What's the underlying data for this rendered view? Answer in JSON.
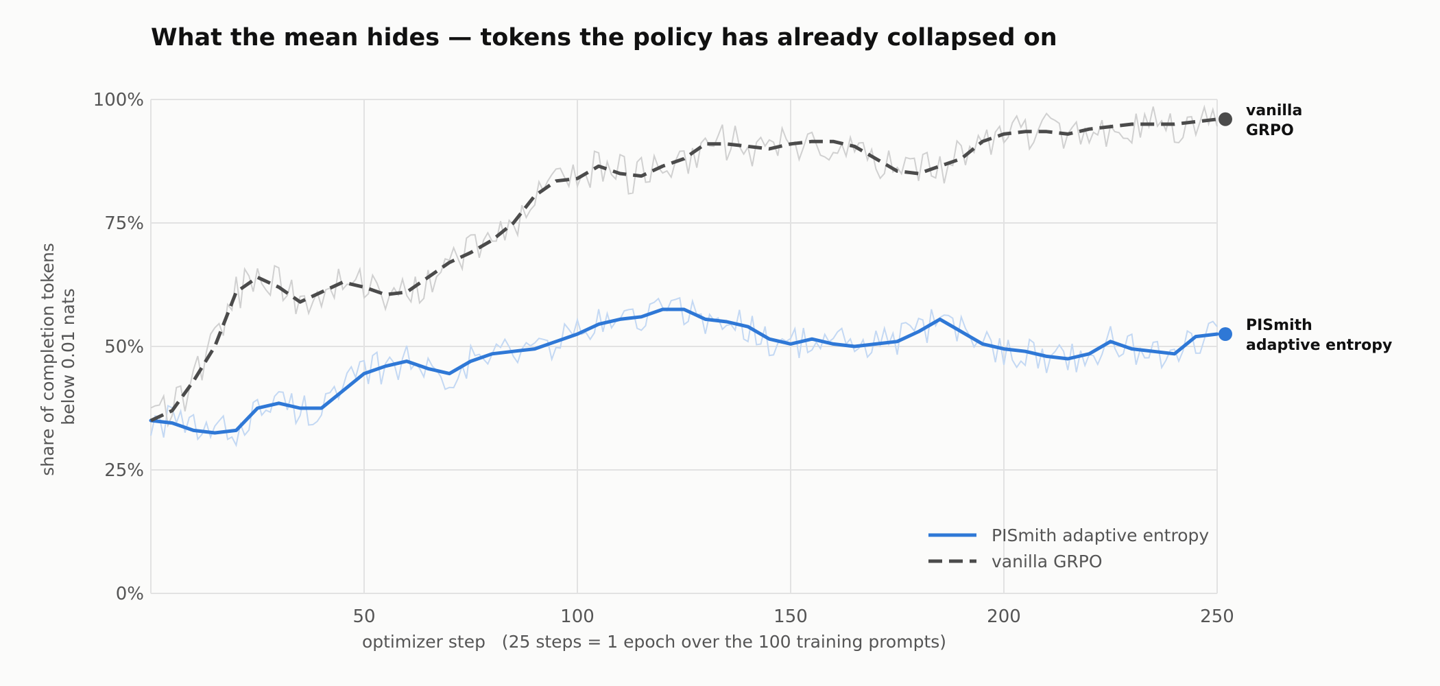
{
  "chart_data": {
    "type": "line",
    "title": "What the mean hides — tokens the policy has already collapsed on",
    "xlabel": "optimizer step   (25 steps = 1 epoch over the 100 training prompts)",
    "ylabel": [
      "share of completion tokens",
      "below 0.01 nats"
    ],
    "xlim": [
      0,
      250
    ],
    "ylim": [
      0,
      100
    ],
    "x_ticks": [
      50,
      100,
      150,
      200,
      250
    ],
    "y_ticks": [
      0,
      25,
      50,
      75,
      100
    ],
    "y_tick_labels": [
      "0%",
      "25%",
      "50%",
      "75%",
      "100%"
    ],
    "grid": true,
    "legend_position": "bottom-right",
    "series": [
      {
        "name": "PISmith adaptive entropy",
        "end_label": [
          "PISmith",
          "adaptive entropy"
        ],
        "color": "#2f78d6",
        "raw_color": "#c3d8f3",
        "style": "solid",
        "x": [
          0,
          5,
          10,
          15,
          20,
          25,
          30,
          35,
          40,
          45,
          50,
          55,
          60,
          65,
          70,
          75,
          80,
          85,
          90,
          95,
          100,
          105,
          110,
          115,
          120,
          125,
          130,
          135,
          140,
          145,
          150,
          155,
          160,
          165,
          170,
          175,
          180,
          185,
          190,
          195,
          200,
          205,
          210,
          215,
          220,
          225,
          230,
          235,
          240,
          245,
          250
        ],
        "values": [
          35,
          34.5,
          33,
          32.5,
          33,
          37.5,
          38.5,
          37.5,
          37.5,
          41,
          44.5,
          46,
          47,
          45.5,
          44.5,
          47,
          48.5,
          49,
          49.5,
          51,
          52.5,
          54.5,
          55.5,
          56,
          57.5,
          57.5,
          55.5,
          55,
          54,
          51.5,
          50.5,
          51.5,
          50.5,
          50,
          50.5,
          51,
          53,
          55.5,
          53,
          50.5,
          49.5,
          49,
          48,
          47.5,
          48.5,
          51,
          49.5,
          49,
          48.5,
          52,
          52.5
        ]
      },
      {
        "name": "vanilla GRPO",
        "end_label": [
          "vanilla",
          "GRPO"
        ],
        "color": "#4b4b4b",
        "raw_color": "#d0d0d0",
        "style": "dashed",
        "x": [
          0,
          5,
          10,
          15,
          20,
          25,
          30,
          35,
          40,
          45,
          50,
          55,
          60,
          65,
          70,
          75,
          80,
          85,
          90,
          95,
          100,
          105,
          110,
          115,
          120,
          125,
          130,
          135,
          140,
          145,
          150,
          155,
          160,
          165,
          170,
          175,
          180,
          185,
          190,
          195,
          200,
          205,
          210,
          215,
          220,
          225,
          230,
          235,
          240,
          245,
          250
        ],
        "values": [
          35,
          37,
          43,
          50,
          61,
          64,
          62,
          59,
          61,
          63,
          62,
          60.5,
          61,
          64,
          67,
          69,
          71.5,
          75,
          80.5,
          83.5,
          84,
          86.5,
          85,
          84.5,
          86.5,
          88,
          91,
          91,
          90.5,
          90,
          91,
          91.5,
          91.5,
          90.5,
          88,
          85.5,
          85,
          86.5,
          88,
          91.5,
          93,
          93.5,
          93.5,
          93,
          94,
          94.5,
          95,
          95,
          95,
          95.5,
          96
        ]
      }
    ]
  }
}
